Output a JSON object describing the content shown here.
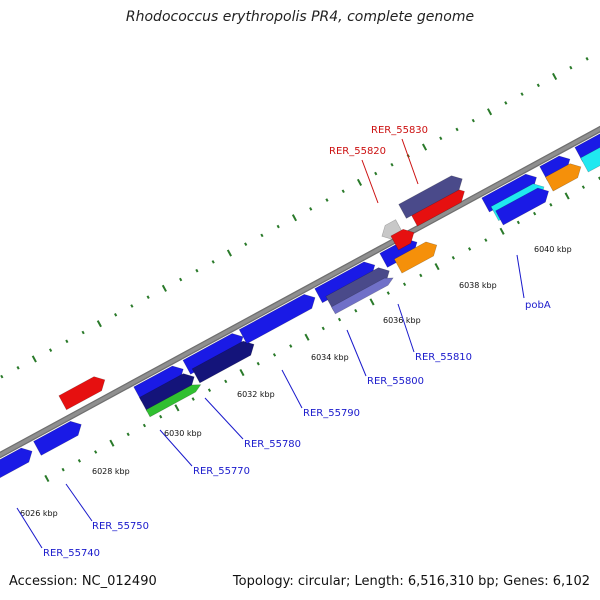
{
  "title": "Rhodococcus erythropolis PR4, complete genome",
  "accession": "Accession: NC_012490",
  "summary": "Topology: circular; Length: 6,516,310 bp; Genes: 6,102",
  "colors": {
    "backbone": "#8f8f8f",
    "ticks": "#2a7a2a",
    "label_default": "#1a1acc",
    "label_highlight": "#cc1111",
    "blue": "#1a1ae6",
    "navy": "#14147a",
    "slate": "#4a4a8a",
    "lavender": "#7070c8",
    "red": "#e61010",
    "grey": "#c8c8c8",
    "orange": "#f5900a",
    "cyan": "#20e8f0",
    "green": "#30c030"
  },
  "tick_labels": [
    "6026 kbp",
    "6028 kbp",
    "6030 kbp",
    "6032 kbp",
    "6034 kbp",
    "6036 kbp",
    "6038 kbp",
    "6040 kbp"
  ],
  "gene_labels": [
    {
      "text": "RER_55740",
      "color": "label_default"
    },
    {
      "text": "RER_55750",
      "color": "label_default"
    },
    {
      "text": "RER_55770",
      "color": "label_default"
    },
    {
      "text": "RER_55780",
      "color": "label_default"
    },
    {
      "text": "RER_55790",
      "color": "label_default"
    },
    {
      "text": "RER_55800",
      "color": "label_default"
    },
    {
      "text": "RER_55810",
      "color": "label_default"
    },
    {
      "text": "pobA",
      "color": "label_default"
    },
    {
      "text": "RER_55820",
      "color": "label_highlight"
    },
    {
      "text": "RER_55830",
      "color": "label_highlight"
    }
  ]
}
